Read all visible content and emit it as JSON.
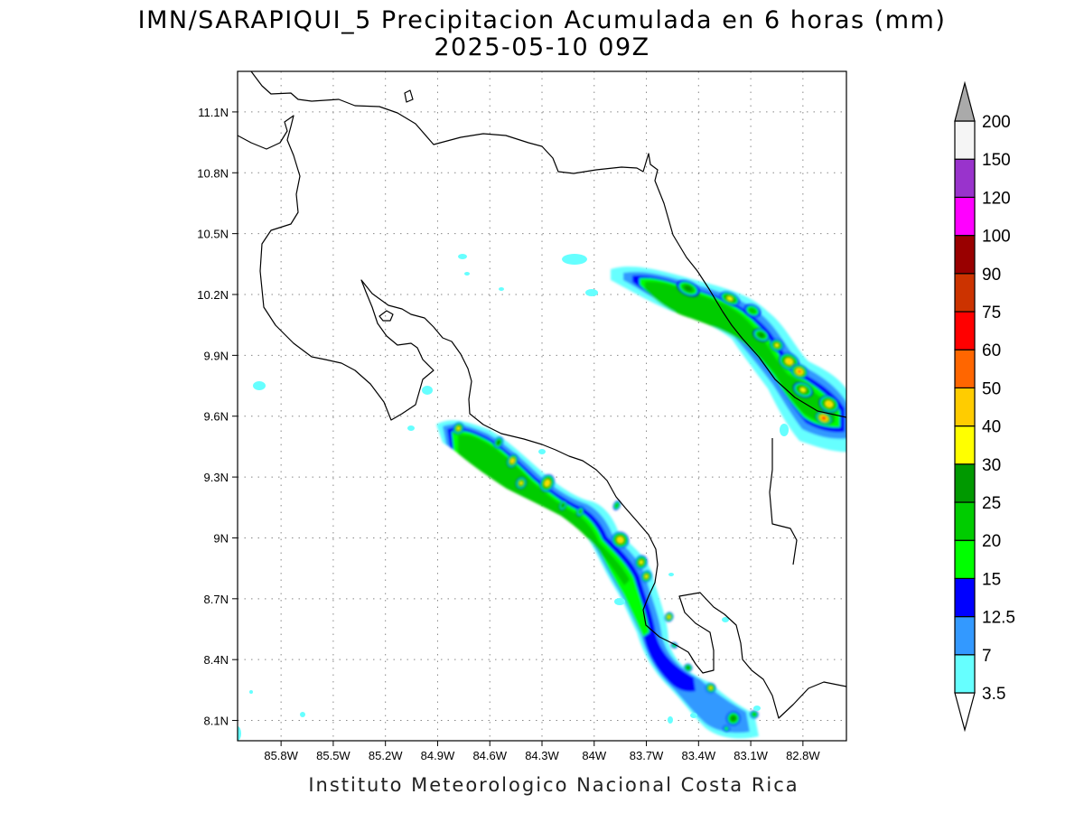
{
  "title": "IMN/SARAPIQUI_5 Precipitacion Acumulada en 6 horas (mm)",
  "subtitle": "2025-05-10 09Z",
  "credit": "Instituto Meteorologico Nacional Costa Rica",
  "chart_data": {
    "type": "heatmap",
    "title": "IMN/SARAPIQUI_5 Precipitacion Acumulada en 6 horas (mm)",
    "subtitle": "2025-05-10 09Z",
    "x_range": [
      -86.05,
      -82.55
    ],
    "y_range": [
      8.0,
      11.3
    ],
    "x_ticks": [
      {
        "value": -85.8,
        "label": "85.8W"
      },
      {
        "value": -85.5,
        "label": "85.5W"
      },
      {
        "value": -85.2,
        "label": "85.2W"
      },
      {
        "value": -84.9,
        "label": "84.9W"
      },
      {
        "value": -84.6,
        "label": "84.6W"
      },
      {
        "value": -84.3,
        "label": "84.3W"
      },
      {
        "value": -84.0,
        "label": "84W"
      },
      {
        "value": -83.7,
        "label": "83.7W"
      },
      {
        "value": -83.4,
        "label": "83.4W"
      },
      {
        "value": -83.1,
        "label": "83.1W"
      },
      {
        "value": -82.8,
        "label": "82.8W"
      }
    ],
    "y_ticks": [
      {
        "value": 8.1,
        "label": "8.1N"
      },
      {
        "value": 8.4,
        "label": "8.4N"
      },
      {
        "value": 8.7,
        "label": "8.7N"
      },
      {
        "value": 9.0,
        "label": "9N"
      },
      {
        "value": 9.3,
        "label": "9.3N"
      },
      {
        "value": 9.6,
        "label": "9.6N"
      },
      {
        "value": 9.9,
        "label": "9.9N"
      },
      {
        "value": 10.2,
        "label": "10.2N"
      },
      {
        "value": 10.5,
        "label": "10.5N"
      },
      {
        "value": 10.8,
        "label": "10.8N"
      },
      {
        "value": 11.1,
        "label": "11.1N"
      }
    ],
    "grid": true,
    "colorbar": {
      "placement": "right",
      "levels": [
        "3.5",
        "7",
        "12.5",
        "15",
        "20",
        "25",
        "30",
        "40",
        "50",
        "60",
        "75",
        "90",
        "100",
        "120",
        "150",
        "200"
      ],
      "colors": [
        "#66ffff",
        "#3399ff",
        "#0000ff",
        "#00ff00",
        "#00cc00",
        "#009900",
        "#ffff00",
        "#ffcc00",
        "#ff6600",
        "#ff0000",
        "#cc3300",
        "#990000",
        "#ff00ff",
        "#9933cc",
        "#f5f5f5",
        "#aaaaaa"
      ]
    },
    "cells": [
      {
        "lon": -83.46,
        "lat": 10.23,
        "rx": 0.07,
        "ry": 0.035,
        "level": 5
      },
      {
        "lon": -83.22,
        "lat": 10.18,
        "rx": 0.06,
        "ry": 0.03,
        "level": 6
      },
      {
        "lon": -83.09,
        "lat": 10.12,
        "rx": 0.05,
        "ry": 0.03,
        "level": 4
      },
      {
        "lon": -83.04,
        "lat": 10.0,
        "rx": 0.05,
        "ry": 0.03,
        "level": 5
      },
      {
        "lon": -82.95,
        "lat": 9.95,
        "rx": 0.04,
        "ry": 0.03,
        "level": 6
      },
      {
        "lon": -82.88,
        "lat": 9.87,
        "rx": 0.06,
        "ry": 0.04,
        "level": 7
      },
      {
        "lon": -82.82,
        "lat": 9.82,
        "rx": 0.05,
        "ry": 0.035,
        "level": 8
      },
      {
        "lon": -82.8,
        "lat": 9.73,
        "rx": 0.06,
        "ry": 0.035,
        "level": 6
      },
      {
        "lon": -82.65,
        "lat": 9.66,
        "rx": 0.06,
        "ry": 0.04,
        "level": 7
      },
      {
        "lon": -82.68,
        "lat": 9.59,
        "rx": 0.05,
        "ry": 0.03,
        "level": 9
      },
      {
        "lon": -84.78,
        "lat": 9.54,
        "rx": 0.03,
        "ry": 0.03,
        "level": 6
      },
      {
        "lon": -84.55,
        "lat": 9.47,
        "rx": 0.025,
        "ry": 0.03,
        "level": 5
      },
      {
        "lon": -84.47,
        "lat": 9.38,
        "rx": 0.03,
        "ry": 0.035,
        "level": 7
      },
      {
        "lon": -84.42,
        "lat": 9.27,
        "rx": 0.03,
        "ry": 0.03,
        "level": 6
      },
      {
        "lon": -84.27,
        "lat": 9.27,
        "rx": 0.04,
        "ry": 0.045,
        "level": 7
      },
      {
        "lon": -84.18,
        "lat": 9.16,
        "rx": 0.02,
        "ry": 0.025,
        "level": 5
      },
      {
        "lon": -84.08,
        "lat": 9.13,
        "rx": 0.02,
        "ry": 0.025,
        "level": 4
      },
      {
        "lon": -83.87,
        "lat": 9.16,
        "rx": 0.02,
        "ry": 0.025,
        "level": 4
      },
      {
        "lon": -83.85,
        "lat": 8.99,
        "rx": 0.05,
        "ry": 0.04,
        "level": 7
      },
      {
        "lon": -83.73,
        "lat": 8.88,
        "rx": 0.035,
        "ry": 0.035,
        "level": 6
      },
      {
        "lon": -83.7,
        "lat": 8.81,
        "rx": 0.03,
        "ry": 0.03,
        "level": 6
      },
      {
        "lon": -83.57,
        "lat": 8.61,
        "rx": 0.025,
        "ry": 0.025,
        "level": 6
      },
      {
        "lon": -83.54,
        "lat": 8.47,
        "rx": 0.02,
        "ry": 0.015,
        "level": 3
      },
      {
        "lon": -83.46,
        "lat": 8.36,
        "rx": 0.025,
        "ry": 0.02,
        "level": 5
      },
      {
        "lon": -83.33,
        "lat": 8.26,
        "rx": 0.03,
        "ry": 0.025,
        "level": 6
      },
      {
        "lon": -83.2,
        "lat": 8.11,
        "rx": 0.04,
        "ry": 0.035,
        "level": 5
      },
      {
        "lon": -83.08,
        "lat": 8.13,
        "rx": 0.025,
        "ry": 0.02,
        "level": 4
      },
      {
        "lon": -83.24,
        "lat": 8.06,
        "rx": 0.02,
        "ry": 0.015,
        "level": 3
      }
    ]
  }
}
